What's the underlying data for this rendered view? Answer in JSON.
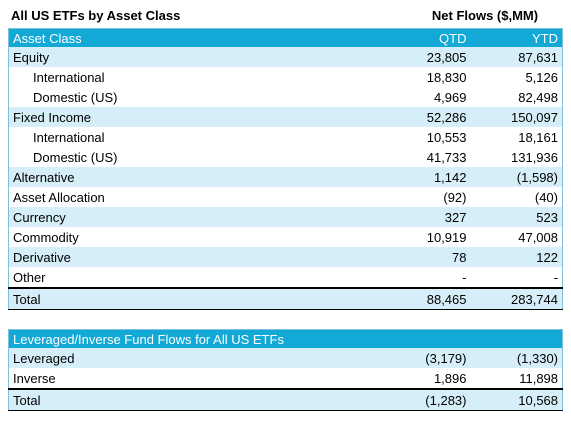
{
  "title": "All US ETFs by Asset Class",
  "net_flows_label": "Net Flows ($,MM)",
  "table1": {
    "header": {
      "col1": "Asset Class",
      "col2": "QTD",
      "col3": "YTD"
    },
    "rows": [
      {
        "label": "Equity",
        "qtd": "23,805",
        "ytd": "87,631"
      },
      {
        "label": "International",
        "qtd": "18,830",
        "ytd": "5,126"
      },
      {
        "label": "Domestic (US)",
        "qtd": "4,969",
        "ytd": "82,498"
      },
      {
        "label": "Fixed Income",
        "qtd": "52,286",
        "ytd": "150,097"
      },
      {
        "label": "International",
        "qtd": "10,553",
        "ytd": "18,161"
      },
      {
        "label": "Domestic (US)",
        "qtd": "41,733",
        "ytd": "131,936"
      },
      {
        "label": "Alternative",
        "qtd": "1,142",
        "ytd": "(1,598)"
      },
      {
        "label": "Asset Allocation",
        "qtd": "(92)",
        "ytd": "(40)"
      },
      {
        "label": "Currency",
        "qtd": "327",
        "ytd": "523"
      },
      {
        "label": "Commodity",
        "qtd": "10,919",
        "ytd": "47,008"
      },
      {
        "label": "Derivative",
        "qtd": "78",
        "ytd": "122"
      },
      {
        "label": "Other",
        "qtd": "-",
        "ytd": "-"
      }
    ],
    "total": {
      "label": "Total",
      "qtd": "88,465",
      "ytd": "283,744"
    }
  },
  "table2": {
    "header": {
      "col1": "Leveraged/Inverse Fund Flows for All US ETFs"
    },
    "rows": [
      {
        "label": "Leveraged",
        "qtd": "(3,179)",
        "ytd": "(1,330)"
      },
      {
        "label": "Inverse",
        "qtd": "1,896",
        "ytd": "11,898"
      }
    ],
    "total": {
      "label": "Total",
      "qtd": "(1,283)",
      "ytd": "10,568"
    }
  },
  "colors": {
    "header_bg": "#12a9d6",
    "band_bg": "#d6eef8"
  }
}
